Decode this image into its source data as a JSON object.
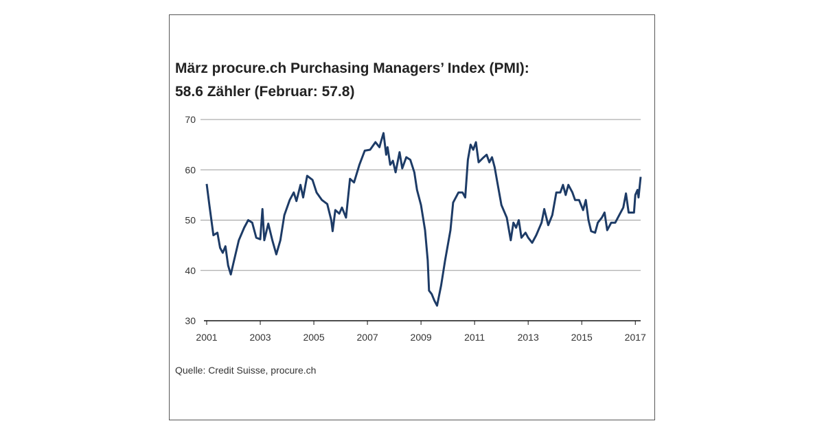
{
  "chart_data": {
    "type": "line",
    "title": [
      "März procure.ch Purchasing Managers’ Index (PMI):",
      "58.6 Zähler (Februar: 57.8)"
    ],
    "source": "Quelle: Credit Suisse, procure.ch",
    "xlim": [
      2001,
      2017.25
    ],
    "xticks": [
      2001,
      2003,
      2005,
      2007,
      2009,
      2011,
      2013,
      2015,
      2017
    ],
    "ylim": [
      30,
      70
    ],
    "yticks": [
      30,
      40,
      50,
      60,
      70
    ],
    "grid": true,
    "x": [
      2001.0,
      2001.1,
      2001.25,
      2001.4,
      2001.5,
      2001.6,
      2001.7,
      2001.8,
      2001.9,
      2002.0,
      2002.2,
      2002.4,
      2002.55,
      2002.7,
      2002.85,
      2003.0,
      2003.08,
      2003.15,
      2003.3,
      2003.45,
      2003.6,
      2003.75,
      2003.9,
      2004.1,
      2004.25,
      2004.35,
      2004.5,
      2004.6,
      2004.75,
      2004.95,
      2005.1,
      2005.3,
      2005.5,
      2005.65,
      2005.7,
      2005.8,
      2005.95,
      2006.05,
      2006.2,
      2006.35,
      2006.5,
      2006.7,
      2006.9,
      2007.1,
      2007.3,
      2007.45,
      2007.5,
      2007.6,
      2007.7,
      2007.75,
      2007.85,
      2007.95,
      2008.05,
      2008.2,
      2008.3,
      2008.45,
      2008.6,
      2008.75,
      2008.85,
      2009.0,
      2009.15,
      2009.25,
      2009.3,
      2009.4,
      2009.5,
      2009.6,
      2009.75,
      2009.9,
      2010.1,
      2010.2,
      2010.4,
      2010.55,
      2010.65,
      2010.75,
      2010.85,
      2010.95,
      2011.05,
      2011.15,
      2011.3,
      2011.45,
      2011.55,
      2011.65,
      2011.75,
      2011.85,
      2012.0,
      2012.2,
      2012.35,
      2012.45,
      2012.55,
      2012.65,
      2012.75,
      2012.9,
      2013.0,
      2013.15,
      2013.3,
      2013.5,
      2013.6,
      2013.75,
      2013.9,
      2014.05,
      2014.2,
      2014.3,
      2014.4,
      2014.5,
      2014.65,
      2014.75,
      2014.9,
      2015.05,
      2015.15,
      2015.25,
      2015.35,
      2015.5,
      2015.6,
      2015.75,
      2015.85,
      2015.95,
      2016.1,
      2016.25,
      2016.4,
      2016.55,
      2016.65,
      2016.75,
      2016.95,
      2017.0,
      2017.08,
      2017.12,
      2017.2
    ],
    "series": [
      {
        "color": "#1d3b66",
        "values": [
          57.2,
          53,
          47,
          47.5,
          44.5,
          43.5,
          44.8,
          41,
          39.2,
          41.5,
          46,
          48.5,
          50,
          49.5,
          46.5,
          46.2,
          52.2,
          46,
          49.3,
          46,
          43.2,
          46,
          51,
          54,
          55.5,
          53.8,
          57,
          54.5,
          58.8,
          58,
          55.5,
          54,
          53.2,
          50,
          47.8,
          52,
          51.3,
          52.5,
          50.5,
          58.2,
          57.5,
          61,
          63.8,
          64,
          65.5,
          64.5,
          65.5,
          67.3,
          63,
          64.5,
          61,
          61.8,
          59.5,
          63.5,
          60.3,
          62.5,
          62,
          59.5,
          56,
          53,
          48,
          42,
          36,
          35.3,
          34,
          33,
          37,
          42,
          48,
          53.5,
          55.5,
          55.5,
          54.5,
          62,
          65,
          64,
          65.5,
          61.5,
          62.3,
          63,
          61.5,
          62.5,
          60.5,
          57.5,
          53,
          50.5,
          46,
          49.5,
          48.5,
          50,
          46.5,
          47.5,
          46.5,
          45.5,
          47,
          49.5,
          52.2,
          49,
          51,
          55.5,
          55.5,
          57,
          55,
          57,
          55.5,
          54,
          54,
          52,
          54,
          50,
          47.8,
          47.5,
          49.5,
          50.5,
          51.5,
          48,
          49.5,
          49.5,
          51,
          52.5,
          55.3,
          51.5,
          51.5,
          55,
          56,
          54.5,
          58.6
        ]
      }
    ]
  }
}
